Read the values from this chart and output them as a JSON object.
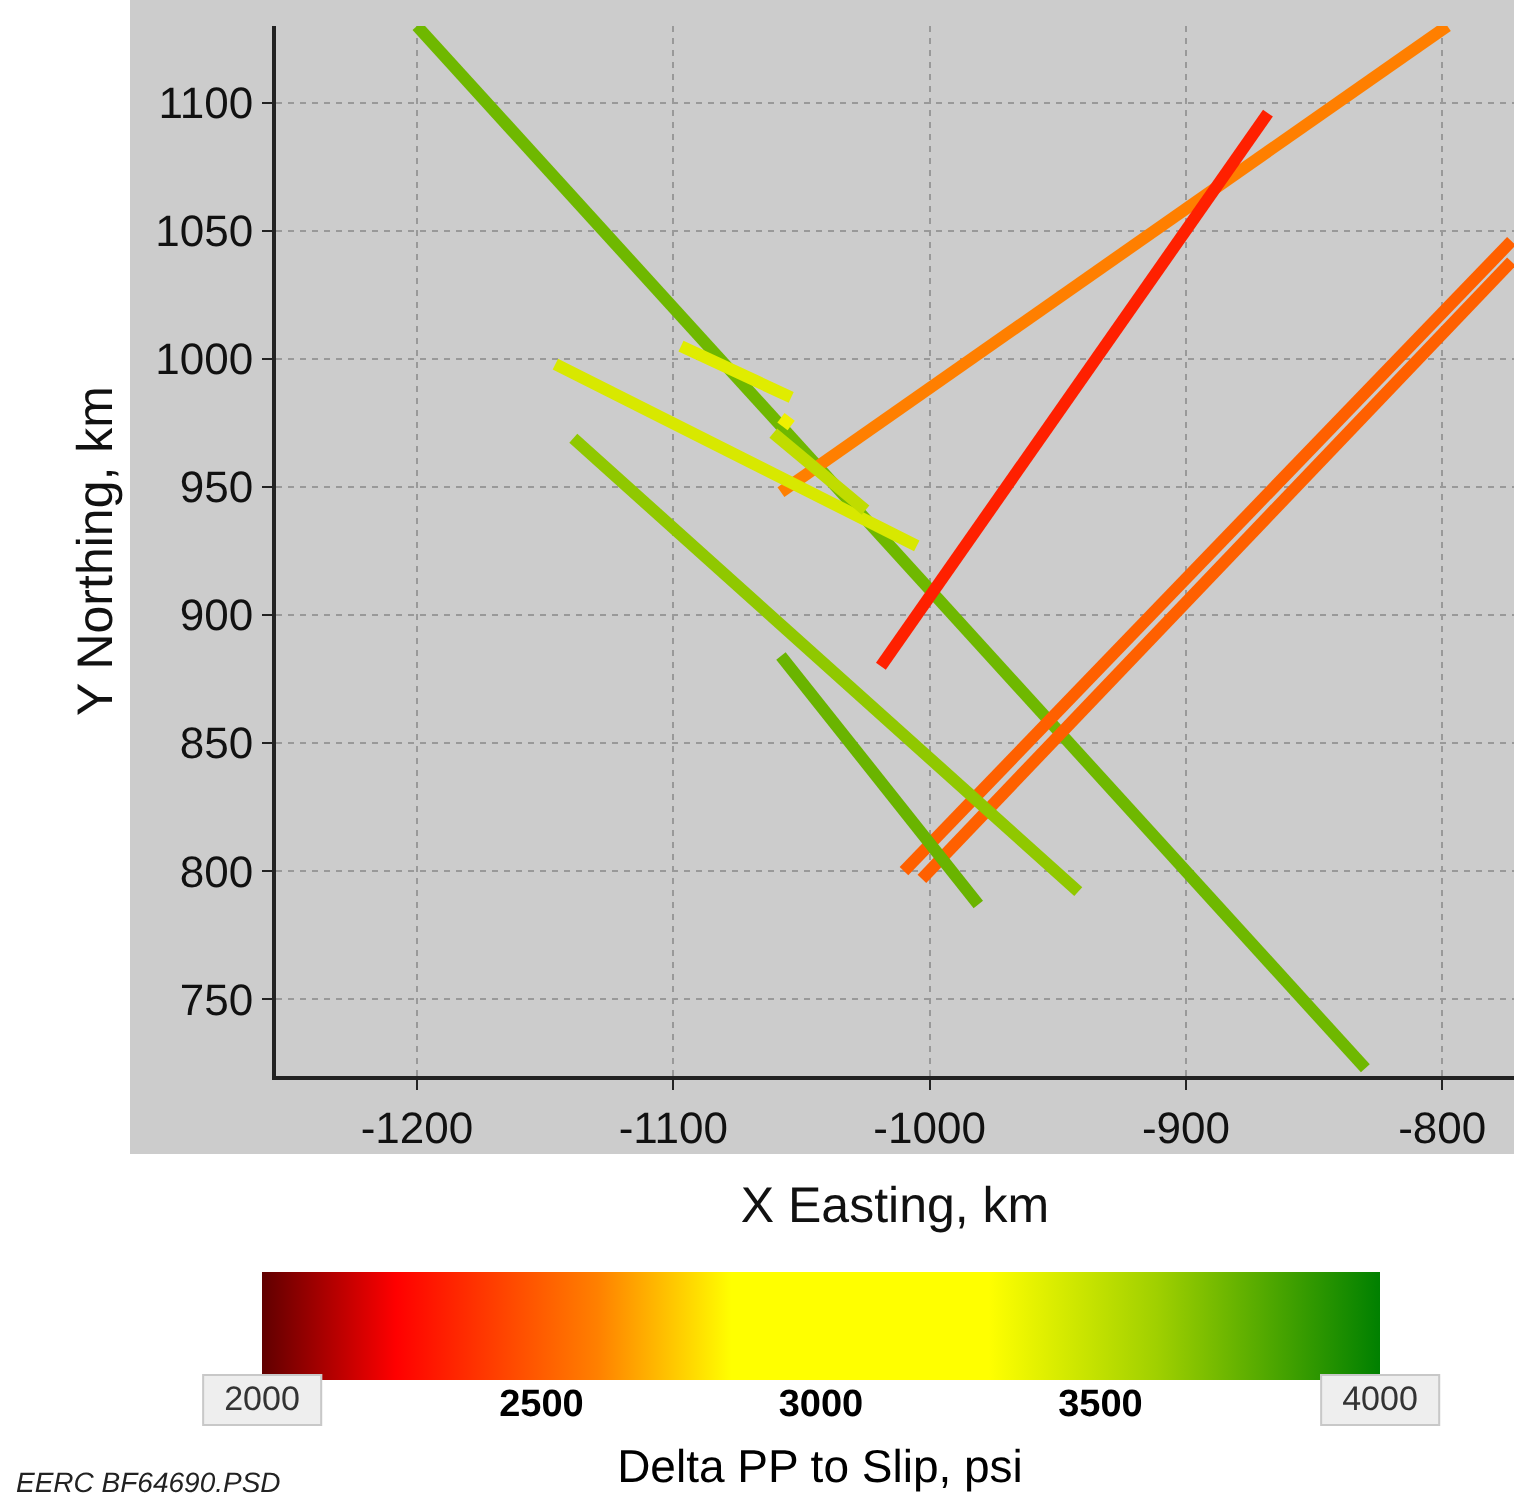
{
  "chart_data": {
    "type": "line",
    "xlabel": "X Easting, km",
    "ylabel": "Y Northing, km",
    "clabel": "Delta PP to Slip, psi",
    "xlim": [
      -1255,
      -772
    ],
    "xticks": [
      -1200,
      -1100,
      -1000,
      -900,
      -800
    ],
    "ylim": [
      720,
      1130
    ],
    "yticks": [
      750,
      800,
      850,
      900,
      950,
      1000,
      1050,
      1100
    ],
    "clim": [
      2000,
      4000
    ],
    "cticks": [
      2000,
      2500,
      3000,
      3500,
      4000
    ],
    "grid": true,
    "series": [
      {
        "color": "#6fb800",
        "x": [
          -1200,
          -830
        ],
        "values": [
          1130,
          723
        ]
      },
      {
        "color": "#ff7f00",
        "x": [
          -1058,
          -798
        ],
        "values": [
          948,
          1130
        ]
      },
      {
        "color": "#ff2000",
        "x": [
          -1019,
          -868
        ],
        "values": [
          880,
          1096
        ]
      },
      {
        "color": "#ff6000",
        "x": [
          -1010,
          -773
        ],
        "values": [
          800,
          1046
        ]
      },
      {
        "color": "#ff6000",
        "x": [
          -1003,
          -773
        ],
        "values": [
          797,
          1038
        ]
      },
      {
        "color": "#e0ec00",
        "x": [
          -1097,
          -1054
        ],
        "values": [
          1005,
          985
        ]
      },
      {
        "color": "#d8e800",
        "x": [
          -1146,
          -1005
        ],
        "values": [
          998,
          927
        ]
      },
      {
        "color": "#c0dc00",
        "x": [
          -1061,
          -1025
        ],
        "values": [
          971,
          941
        ]
      },
      {
        "color": "#f0f000",
        "x": [
          -1058,
          -1054
        ],
        "values": [
          977,
          974
        ]
      },
      {
        "color": "#90c800",
        "x": [
          -1139,
          -942
        ],
        "values": [
          969,
          792
        ]
      },
      {
        "color": "#6ab400",
        "x": [
          -1058,
          -981
        ],
        "values": [
          884,
          787
        ]
      }
    ],
    "annotations": [
      "EERC BF64690.PSD"
    ]
  }
}
